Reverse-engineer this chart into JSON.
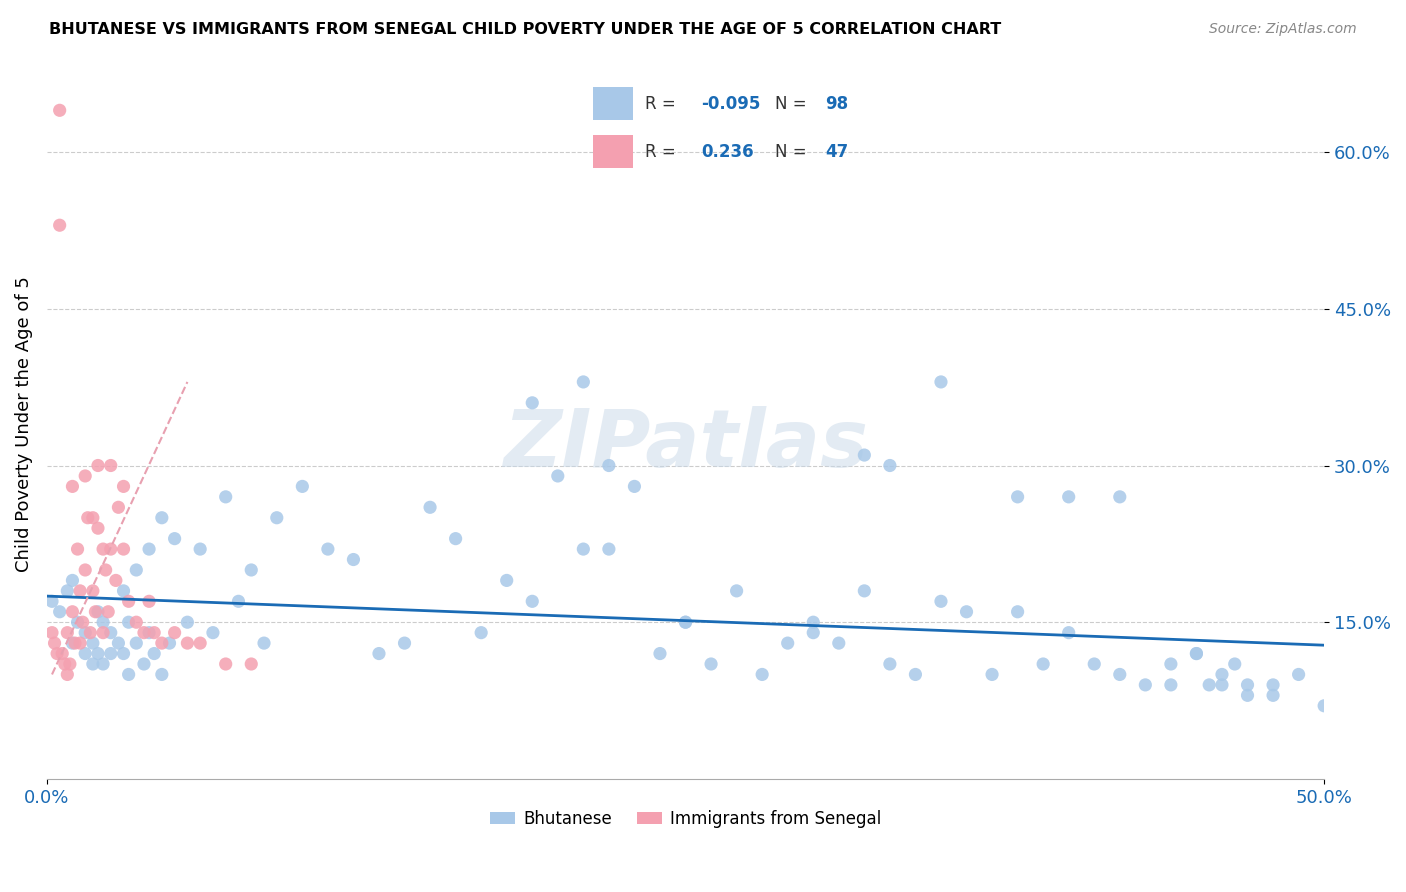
{
  "title": "BHUTANESE VS IMMIGRANTS FROM SENEGAL CHILD POVERTY UNDER THE AGE OF 5 CORRELATION CHART",
  "source": "Source: ZipAtlas.com",
  "xlim": [
    0,
    0.5
  ],
  "ylim": [
    0,
    0.68
  ],
  "legend_label1": "Bhutanese",
  "legend_label2": "Immigrants from Senegal",
  "R1": -0.095,
  "N1": 98,
  "R2": 0.236,
  "N2": 47,
  "color1": "#a8c8e8",
  "color2": "#f4a0b0",
  "trendline_color1": "#1a6bb5",
  "trendline_color2": "#e8a0b0",
  "watermark": "ZIPatlas",
  "blue_x": [
    0.002,
    0.005,
    0.008,
    0.01,
    0.01,
    0.012,
    0.015,
    0.015,
    0.018,
    0.018,
    0.02,
    0.02,
    0.022,
    0.022,
    0.025,
    0.025,
    0.028,
    0.03,
    0.03,
    0.032,
    0.032,
    0.035,
    0.035,
    0.038,
    0.04,
    0.04,
    0.042,
    0.045,
    0.045,
    0.048,
    0.05,
    0.055,
    0.06,
    0.065,
    0.07,
    0.075,
    0.08,
    0.085,
    0.09,
    0.1,
    0.11,
    0.12,
    0.13,
    0.14,
    0.15,
    0.16,
    0.17,
    0.18,
    0.19,
    0.2,
    0.21,
    0.22,
    0.23,
    0.24,
    0.25,
    0.26,
    0.27,
    0.28,
    0.29,
    0.3,
    0.31,
    0.32,
    0.33,
    0.34,
    0.35,
    0.36,
    0.37,
    0.38,
    0.39,
    0.4,
    0.41,
    0.42,
    0.43,
    0.44,
    0.45,
    0.46,
    0.47,
    0.48,
    0.49,
    0.5,
    0.19,
    0.21,
    0.32,
    0.35,
    0.42,
    0.38,
    0.25,
    0.3,
    0.4,
    0.45,
    0.46,
    0.47,
    0.48,
    0.33,
    0.22,
    0.44,
    0.455,
    0.465
  ],
  "blue_y": [
    0.17,
    0.16,
    0.18,
    0.19,
    0.13,
    0.15,
    0.12,
    0.14,
    0.11,
    0.13,
    0.16,
    0.12,
    0.15,
    0.11,
    0.14,
    0.12,
    0.13,
    0.18,
    0.12,
    0.15,
    0.1,
    0.2,
    0.13,
    0.11,
    0.22,
    0.14,
    0.12,
    0.25,
    0.1,
    0.13,
    0.23,
    0.15,
    0.22,
    0.14,
    0.27,
    0.17,
    0.2,
    0.13,
    0.25,
    0.28,
    0.22,
    0.21,
    0.12,
    0.13,
    0.26,
    0.23,
    0.14,
    0.19,
    0.17,
    0.29,
    0.22,
    0.22,
    0.28,
    0.12,
    0.15,
    0.11,
    0.18,
    0.1,
    0.13,
    0.15,
    0.13,
    0.18,
    0.11,
    0.1,
    0.17,
    0.16,
    0.1,
    0.16,
    0.11,
    0.14,
    0.11,
    0.1,
    0.09,
    0.11,
    0.12,
    0.1,
    0.08,
    0.09,
    0.1,
    0.07,
    0.36,
    0.38,
    0.31,
    0.38,
    0.27,
    0.27,
    0.15,
    0.14,
    0.27,
    0.12,
    0.09,
    0.09,
    0.08,
    0.3,
    0.3,
    0.09,
    0.09,
    0.11
  ],
  "pink_x": [
    0.002,
    0.003,
    0.004,
    0.005,
    0.006,
    0.007,
    0.008,
    0.008,
    0.009,
    0.01,
    0.01,
    0.011,
    0.012,
    0.013,
    0.013,
    0.014,
    0.015,
    0.015,
    0.016,
    0.017,
    0.018,
    0.018,
    0.019,
    0.02,
    0.02,
    0.022,
    0.022,
    0.023,
    0.024,
    0.025,
    0.025,
    0.027,
    0.028,
    0.03,
    0.03,
    0.032,
    0.035,
    0.038,
    0.04,
    0.042,
    0.045,
    0.05,
    0.055,
    0.06,
    0.07,
    0.08,
    0.005
  ],
  "pink_y": [
    0.14,
    0.13,
    0.12,
    0.64,
    0.12,
    0.11,
    0.1,
    0.14,
    0.11,
    0.16,
    0.28,
    0.13,
    0.22,
    0.18,
    0.13,
    0.15,
    0.2,
    0.29,
    0.25,
    0.14,
    0.25,
    0.18,
    0.16,
    0.24,
    0.3,
    0.22,
    0.14,
    0.2,
    0.16,
    0.22,
    0.3,
    0.19,
    0.26,
    0.22,
    0.28,
    0.17,
    0.15,
    0.14,
    0.17,
    0.14,
    0.13,
    0.14,
    0.13,
    0.13,
    0.11,
    0.11,
    0.53
  ],
  "blue_trend_x": [
    0.0,
    0.5
  ],
  "blue_trend_y": [
    0.175,
    0.128
  ],
  "pink_trend_x_start": 0.002,
  "pink_trend_x_end": 0.055,
  "pink_trend_y_start": 0.1,
  "pink_trend_y_end": 0.38
}
